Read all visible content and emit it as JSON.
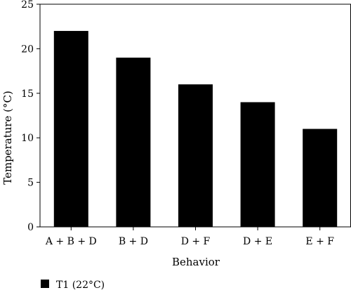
{
  "chart_data": {
    "type": "bar",
    "title": "",
    "xlabel": "Behavior",
    "ylabel": "Temperature (°C)",
    "categories": [
      "A + B + D",
      "B + D",
      "D + F",
      "D + E",
      "E + F"
    ],
    "series": [
      {
        "name": "T1 (22°C)",
        "values": [
          22,
          19,
          16,
          14,
          11
        ],
        "color": "#000000"
      }
    ],
    "ylim": [
      0,
      25
    ],
    "yticks": [
      0,
      5,
      10,
      15,
      20,
      25
    ],
    "grid": false,
    "legend_position": "bottom-left"
  }
}
